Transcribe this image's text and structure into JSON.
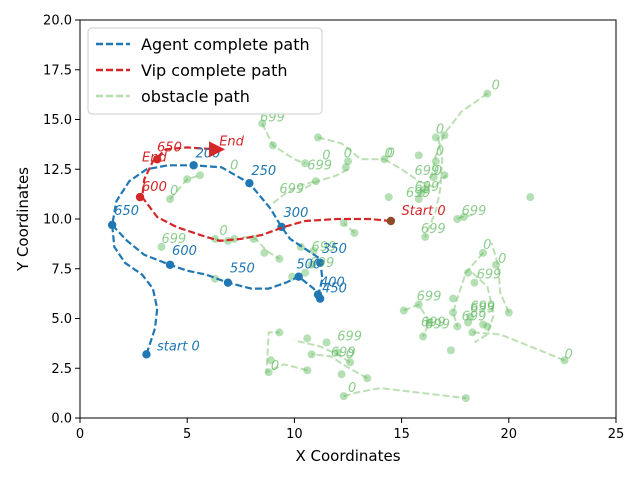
{
  "chart_data": {
    "type": "line",
    "xlabel": "X Coordinates",
    "ylabel": "Y Coordinates",
    "xlim": [
      0,
      25
    ],
    "ylim": [
      0,
      20
    ],
    "xticks": [
      0,
      5,
      10,
      15,
      20,
      25
    ],
    "yticks": [
      0,
      2.5,
      5,
      7.5,
      10,
      12.5,
      15,
      17.5,
      20
    ],
    "xtick_labels": [
      "0",
      "5",
      "10",
      "15",
      "20",
      "25"
    ],
    "ytick_labels": [
      "0.0",
      "2.5",
      "5.0",
      "7.5",
      "10.0",
      "12.5",
      "15.0",
      "17.5",
      "20.0"
    ],
    "grid": false,
    "legend": {
      "position": "upper-left",
      "entries": [
        {
          "label": "Agent complete path",
          "color": "#1f77b4",
          "style": "dashed"
        },
        {
          "label": "Vip complete path",
          "color": "#d62728",
          "style": "dashed"
        },
        {
          "label": "obstacle path",
          "color": "#98d08c",
          "style": "dashed"
        }
      ]
    },
    "series": [
      {
        "name": "Agent complete path",
        "color": "#1f77b4",
        "style": "dashed",
        "points": [
          [
            3.1,
            3.2
          ],
          [
            3.5,
            4.5
          ],
          [
            3.6,
            5.5
          ],
          [
            3.4,
            6.5
          ],
          [
            2.9,
            7.2
          ],
          [
            2.1,
            7.8
          ],
          [
            1.6,
            8.6
          ],
          [
            1.5,
            9.7
          ],
          [
            1.7,
            10.9
          ],
          [
            2.3,
            11.9
          ],
          [
            3.1,
            12.5
          ],
          [
            4.1,
            12.7
          ],
          [
            5.3,
            12.7
          ],
          [
            6.6,
            12.6
          ],
          [
            7.9,
            11.8
          ],
          [
            8.9,
            10.5
          ],
          [
            9.4,
            9.6
          ],
          [
            9.8,
            9.0
          ],
          [
            10.5,
            8.5
          ],
          [
            11.2,
            8.0
          ],
          [
            11.3,
            7.0
          ],
          [
            11.2,
            6.5
          ],
          [
            11.1,
            6.2
          ],
          [
            11.2,
            6.0
          ],
          [
            10.9,
            6.5
          ],
          [
            10.2,
            7.1
          ],
          [
            9.6,
            6.8
          ],
          [
            8.8,
            6.5
          ],
          [
            8.0,
            6.5
          ],
          [
            6.9,
            6.8
          ],
          [
            5.9,
            7.2
          ],
          [
            5.0,
            7.4
          ],
          [
            4.2,
            7.7
          ],
          [
            3.0,
            8.2
          ],
          [
            2.2,
            8.9
          ],
          [
            1.5,
            9.7
          ]
        ],
        "markers": [
          [
            3.1,
            3.2
          ],
          [
            1.5,
            9.7
          ],
          [
            5.3,
            12.7
          ],
          [
            7.9,
            11.8
          ],
          [
            9.4,
            9.6
          ],
          [
            11.2,
            7.8
          ],
          [
            11.1,
            6.2
          ],
          [
            11.2,
            6.0
          ],
          [
            10.2,
            7.1
          ],
          [
            6.9,
            6.8
          ],
          [
            4.2,
            7.7
          ]
        ],
        "labels": [
          {
            "text": "start 0",
            "x": 3.5,
            "y": 3.3
          },
          {
            "text": "650",
            "x": 1.5,
            "y": 10.1
          },
          {
            "text": "200",
            "x": 5.3,
            "y": 13.0
          },
          {
            "text": "250",
            "x": 7.9,
            "y": 12.1
          },
          {
            "text": "300",
            "x": 9.4,
            "y": 10.0
          },
          {
            "text": "350",
            "x": 11.2,
            "y": 8.2
          },
          {
            "text": "500",
            "x": 10.0,
            "y": 7.4
          },
          {
            "text": "400",
            "x": 11.1,
            "y": 6.5
          },
          {
            "text": "450",
            "x": 11.2,
            "y": 6.2
          },
          {
            "text": "550",
            "x": 6.9,
            "y": 7.2
          },
          {
            "text": "600",
            "x": 4.2,
            "y": 8.1
          }
        ]
      },
      {
        "name": "Vip complete path",
        "color": "#d62728",
        "style": "dashed",
        "points": [
          [
            14.5,
            9.9
          ],
          [
            13.5,
            10.0
          ],
          [
            12.0,
            10.0
          ],
          [
            10.5,
            9.9
          ],
          [
            9.5,
            9.6
          ],
          [
            8.5,
            9.2
          ],
          [
            7.5,
            9.0
          ],
          [
            6.5,
            8.9
          ],
          [
            5.6,
            9.2
          ],
          [
            4.5,
            9.6
          ],
          [
            3.6,
            10.1
          ],
          [
            2.9,
            11.1
          ],
          [
            3.0,
            12.0
          ],
          [
            3.4,
            12.9
          ],
          [
            4.0,
            13.5
          ],
          [
            5.0,
            13.6
          ],
          [
            6.3,
            13.5
          ]
        ],
        "markers": [
          [
            14.5,
            9.9
          ],
          [
            2.8,
            11.1
          ],
          [
            3.6,
            13.0
          ]
        ],
        "labels": [
          {
            "text": "Start 0",
            "x": 14.9,
            "y": 10.1
          },
          {
            "text": "600",
            "x": 2.8,
            "y": 11.3
          },
          {
            "text": "650",
            "x": 3.5,
            "y": 13.3
          },
          {
            "text": "End",
            "x": 6.4,
            "y": 13.6
          },
          {
            "text": "End",
            "x": 2.8,
            "y": 12.8
          }
        ]
      }
    ],
    "obstacle_paths": [
      [
        [
          19.0,
          16.3
        ],
        [
          17.8,
          15.4
        ],
        [
          17.0,
          14.3
        ],
        [
          16.6,
          13.2
        ],
        [
          16.4,
          12.2
        ],
        [
          15.9,
          11.3
        ]
      ],
      [
        [
          18.8,
          8.3
        ],
        [
          18.0,
          7.3
        ],
        [
          17.6,
          6.0
        ],
        [
          17.4,
          5.3
        ],
        [
          17.6,
          4.6
        ]
      ],
      [
        [
          12.3,
          1.1
        ],
        [
          13.0,
          1.3
        ],
        [
          14.0,
          1.5
        ],
        [
          18.0,
          1.0
        ]
      ],
      [
        [
          20.0,
          5.3
        ],
        [
          19.6,
          6.3
        ],
        [
          19.5,
          7.7
        ],
        [
          19.2,
          8.8
        ]
      ],
      [
        [
          22.6,
          2.9
        ],
        [
          21.0,
          3.6
        ],
        [
          19.6,
          4.2
        ],
        [
          18.3,
          4.3
        ]
      ],
      [
        [
          18.3,
          7.3
        ],
        [
          19.0,
          6.6
        ],
        [
          19.3,
          5.2
        ],
        [
          19.0,
          4.2
        ],
        [
          18.4,
          3.8
        ]
      ],
      [
        [
          14.2,
          13.0
        ],
        [
          15.0,
          12.5
        ],
        [
          15.8,
          11.9
        ],
        [
          16.5,
          11.6
        ],
        [
          17.1,
          12.2
        ]
      ],
      [
        [
          16.7,
          14.1
        ],
        [
          16.9,
          13.0
        ],
        [
          16.8,
          11.5
        ],
        [
          16.6,
          10.4
        ],
        [
          16.1,
          9.1
        ]
      ],
      [
        [
          17.6,
          10.0
        ],
        [
          17.8,
          10.1
        ],
        [
          18.3,
          10.2
        ]
      ],
      [
        [
          15.1,
          5.4
        ],
        [
          15.8,
          5.7
        ],
        [
          16.3,
          4.8
        ],
        [
          16.0,
          4.1
        ]
      ],
      [
        [
          11.1,
          14.1
        ],
        [
          12.2,
          13.8
        ],
        [
          13.1,
          13.0
        ],
        [
          14.2,
          13.0
        ]
      ],
      [
        [
          8.5,
          14.8
        ],
        [
          9.0,
          13.7
        ],
        [
          10.0,
          13.0
        ],
        [
          10.5,
          12.8
        ]
      ],
      [
        [
          9.0,
          10.8
        ],
        [
          9.6,
          11.3
        ],
        [
          10.3,
          11.7
        ],
        [
          11.0,
          11.9
        ]
      ],
      [
        [
          12.5,
          12.5
        ],
        [
          12.0,
          12.2
        ],
        [
          11.1,
          11.9
        ],
        [
          10.2,
          11.4
        ]
      ],
      [
        [
          13.4,
          2.0
        ],
        [
          12.4,
          2.6
        ],
        [
          11.7,
          3.1
        ],
        [
          10.8,
          3.2
        ]
      ],
      [
        [
          10.6,
          2.4
        ],
        [
          9.5,
          2.7
        ],
        [
          8.7,
          2.3
        ],
        [
          8.8,
          4.3
        ],
        [
          9.3,
          4.3
        ]
      ],
      [
        [
          4.2,
          11.0
        ],
        [
          5.0,
          12.0
        ],
        [
          5.6,
          12.2
        ]
      ],
      [
        [
          12.6,
          2.8
        ],
        [
          12.0,
          3.2
        ],
        [
          11.2,
          3.6
        ],
        [
          10.0,
          3.9
        ]
      ],
      [
        [
          6.3,
          9.0
        ],
        [
          6.8,
          8.9
        ],
        [
          7.2,
          9.0
        ]
      ],
      [
        [
          12.8,
          9.3
        ],
        [
          12.3,
          9.8
        ]
      ],
      [
        [
          7.6,
          9.1
        ],
        [
          8.2,
          9.0
        ],
        [
          8.7,
          8.4
        ],
        [
          9.3,
          8.0
        ]
      ]
    ],
    "obstacle_markers": [
      [
        19.0,
        16.3
      ],
      [
        18.8,
        8.3
      ],
      [
        12.3,
        1.1
      ],
      [
        18.0,
        1.0
      ],
      [
        22.6,
        2.9
      ],
      [
        21.0,
        11.1
      ],
      [
        16.6,
        14.1
      ],
      [
        17.0,
        14.2
      ],
      [
        14.2,
        13.0
      ],
      [
        15.8,
        13.2
      ],
      [
        16.6,
        12.9
      ],
      [
        16.5,
        12.1
      ],
      [
        17.0,
        12.2
      ],
      [
        15.9,
        11.3
      ],
      [
        16.1,
        11.5
      ],
      [
        15.8,
        11.0
      ],
      [
        14.4,
        11.1
      ],
      [
        16.1,
        9.1
      ],
      [
        17.6,
        10.0
      ],
      [
        17.9,
        10.1
      ],
      [
        11.1,
        14.1
      ],
      [
        9.0,
        13.7
      ],
      [
        8.5,
        14.8
      ],
      [
        11.0,
        11.9
      ],
      [
        12.5,
        12.9
      ],
      [
        12.4,
        12.6
      ],
      [
        10.5,
        12.8
      ],
      [
        12.8,
        9.3
      ],
      [
        12.3,
        9.8
      ],
      [
        10.3,
        8.6
      ],
      [
        10.9,
        8.4
      ],
      [
        10.8,
        7.7
      ],
      [
        10.5,
        7.3
      ],
      [
        9.9,
        7.1
      ],
      [
        9.3,
        8.0
      ],
      [
        8.6,
        8.3
      ],
      [
        8.1,
        9.0
      ],
      [
        7.2,
        9.0
      ],
      [
        6.9,
        8.9
      ],
      [
        6.3,
        9.0
      ],
      [
        5.6,
        12.2
      ],
      [
        5.0,
        12.0
      ],
      [
        4.2,
        11.0
      ],
      [
        3.8,
        8.6
      ],
      [
        6.3,
        7.0
      ],
      [
        15.1,
        5.4
      ],
      [
        15.8,
        5.7
      ],
      [
        16.0,
        4.1
      ],
      [
        16.3,
        4.8
      ],
      [
        17.4,
        6.0
      ],
      [
        17.4,
        5.3
      ],
      [
        17.6,
        4.6
      ],
      [
        18.1,
        4.8
      ],
      [
        18.2,
        5.1
      ],
      [
        18.3,
        4.3
      ],
      [
        18.4,
        6.8
      ],
      [
        18.1,
        7.3
      ],
      [
        19.0,
        4.6
      ],
      [
        18.8,
        4.7
      ],
      [
        17.3,
        3.4
      ],
      [
        20.0,
        5.3
      ],
      [
        19.4,
        7.7
      ],
      [
        10.6,
        4.0
      ],
      [
        9.3,
        4.3
      ],
      [
        10.6,
        2.4
      ],
      [
        8.8,
        2.3
      ],
      [
        10.8,
        3.2
      ],
      [
        11.5,
        3.8
      ],
      [
        12.0,
        3.3
      ],
      [
        12.2,
        2.2
      ],
      [
        12.6,
        2.8
      ],
      [
        13.4,
        2.0
      ],
      [
        8.9,
        2.9
      ]
    ],
    "obstacle_labels": [
      {
        "text": "0",
        "x": 19.2,
        "y": 16.5
      },
      {
        "text": "699",
        "x": 8.4,
        "y": 14.9
      },
      {
        "text": "0",
        "x": 16.6,
        "y": 14.3
      },
      {
        "text": "0",
        "x": 16.6,
        "y": 13.2
      },
      {
        "text": "0",
        "x": 14.2,
        "y": 13.1
      },
      {
        "text": "0",
        "x": 14.3,
        "y": 13.1
      },
      {
        "text": "0",
        "x": 12.3,
        "y": 13.1
      },
      {
        "text": "0",
        "x": 11.3,
        "y": 13.0
      },
      {
        "text": "699",
        "x": 10.6,
        "y": 12.5
      },
      {
        "text": "699",
        "x": 15.6,
        "y": 12.2
      },
      {
        "text": "699",
        "x": 15.6,
        "y": 11.4
      },
      {
        "text": "699",
        "x": 15.2,
        "y": 11.1
      },
      {
        "text": "0",
        "x": 16.5,
        "y": 12.2
      },
      {
        "text": "0",
        "x": 7.0,
        "y": 12.5
      },
      {
        "text": "0",
        "x": 4.2,
        "y": 11.2
      },
      {
        "text": "699",
        "x": 9.3,
        "y": 11.3
      },
      {
        "text": "699",
        "x": 17.8,
        "y": 10.2
      },
      {
        "text": "699",
        "x": 15.9,
        "y": 9.3
      },
      {
        "text": "0",
        "x": 6.5,
        "y": 9.2
      },
      {
        "text": "699",
        "x": 3.8,
        "y": 8.8
      },
      {
        "text": "699",
        "x": 10.8,
        "y": 8.4
      },
      {
        "text": "699",
        "x": 10.7,
        "y": 7.6
      },
      {
        "text": "0",
        "x": 18.8,
        "y": 8.5
      },
      {
        "text": "0",
        "x": 19.5,
        "y": 7.8
      },
      {
        "text": "699",
        "x": 18.5,
        "y": 7.0
      },
      {
        "text": "699",
        "x": 15.7,
        "y": 5.9
      },
      {
        "text": "699",
        "x": 18.2,
        "y": 5.4
      },
      {
        "text": "699",
        "x": 18.2,
        "y": 5.3
      },
      {
        "text": "699",
        "x": 17.8,
        "y": 4.9
      },
      {
        "text": "699",
        "x": 15.9,
        "y": 4.6
      },
      {
        "text": "699",
        "x": 16.1,
        "y": 4.5
      },
      {
        "text": "699",
        "x": 12.0,
        "y": 3.9
      },
      {
        "text": "699",
        "x": 11.7,
        "y": 3.1
      },
      {
        "text": "0",
        "x": 12.4,
        "y": 3.0
      },
      {
        "text": "0",
        "x": 8.9,
        "y": 2.4
      },
      {
        "text": "0",
        "x": 22.6,
        "y": 3.0
      },
      {
        "text": "0",
        "x": 12.5,
        "y": 1.3
      }
    ]
  }
}
